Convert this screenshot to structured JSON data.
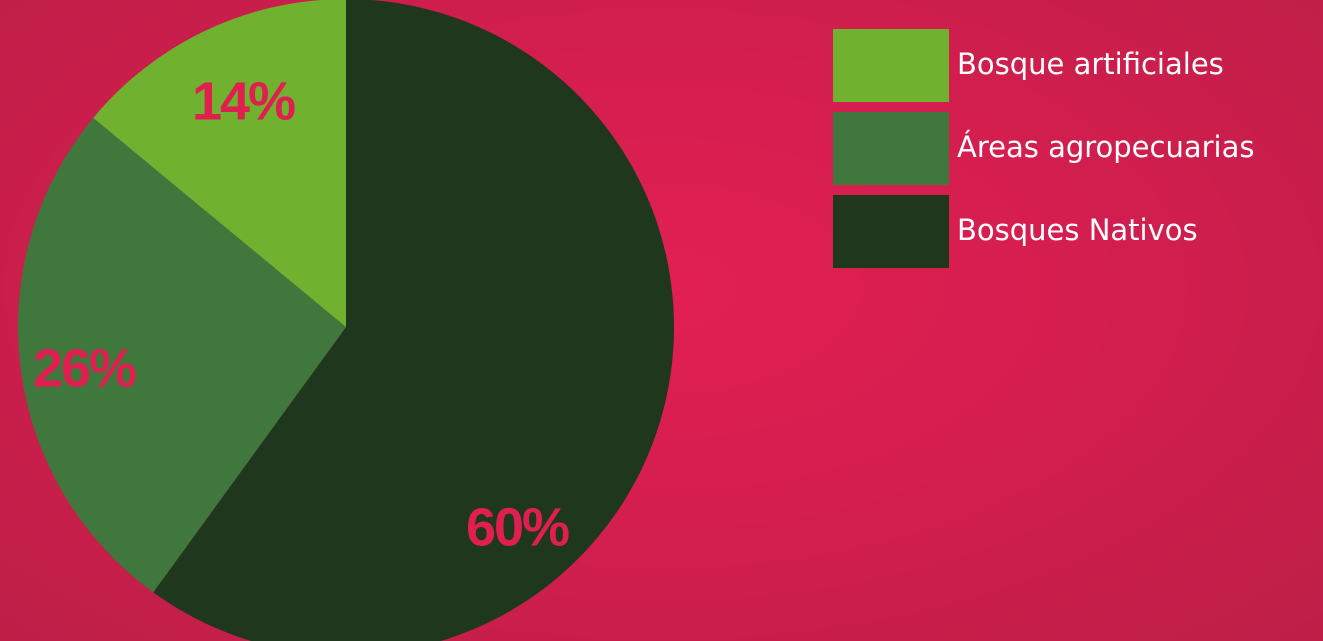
{
  "chart_data": {
    "type": "pie",
    "title": "",
    "series": [
      {
        "name": "",
        "values": [
          60,
          26,
          14
        ],
        "labels": [
          "60%",
          "26%",
          "14%"
        ],
        "categories": [
          "Bosques Nativos",
          "Áreas agropecuarias",
          "Bosque artificiales"
        ],
        "colors": [
          "#1f371c",
          "#3f773c",
          "#70b12f"
        ]
      }
    ],
    "legend": {
      "placement": "top-right",
      "entries": [
        {
          "label": "Bosque artificiales",
          "color": "#70b12f"
        },
        {
          "label": "Áreas agropecuarias",
          "color": "#3f773c"
        },
        {
          "label": "Bosques Nativos",
          "color": "#1f371c"
        }
      ]
    },
    "start_angle": "12 o'clock",
    "direction": "clockwise"
  },
  "colors": {
    "background": "#d41e4f",
    "label_text": "#e01f50",
    "legend_text": "#ffffff"
  }
}
